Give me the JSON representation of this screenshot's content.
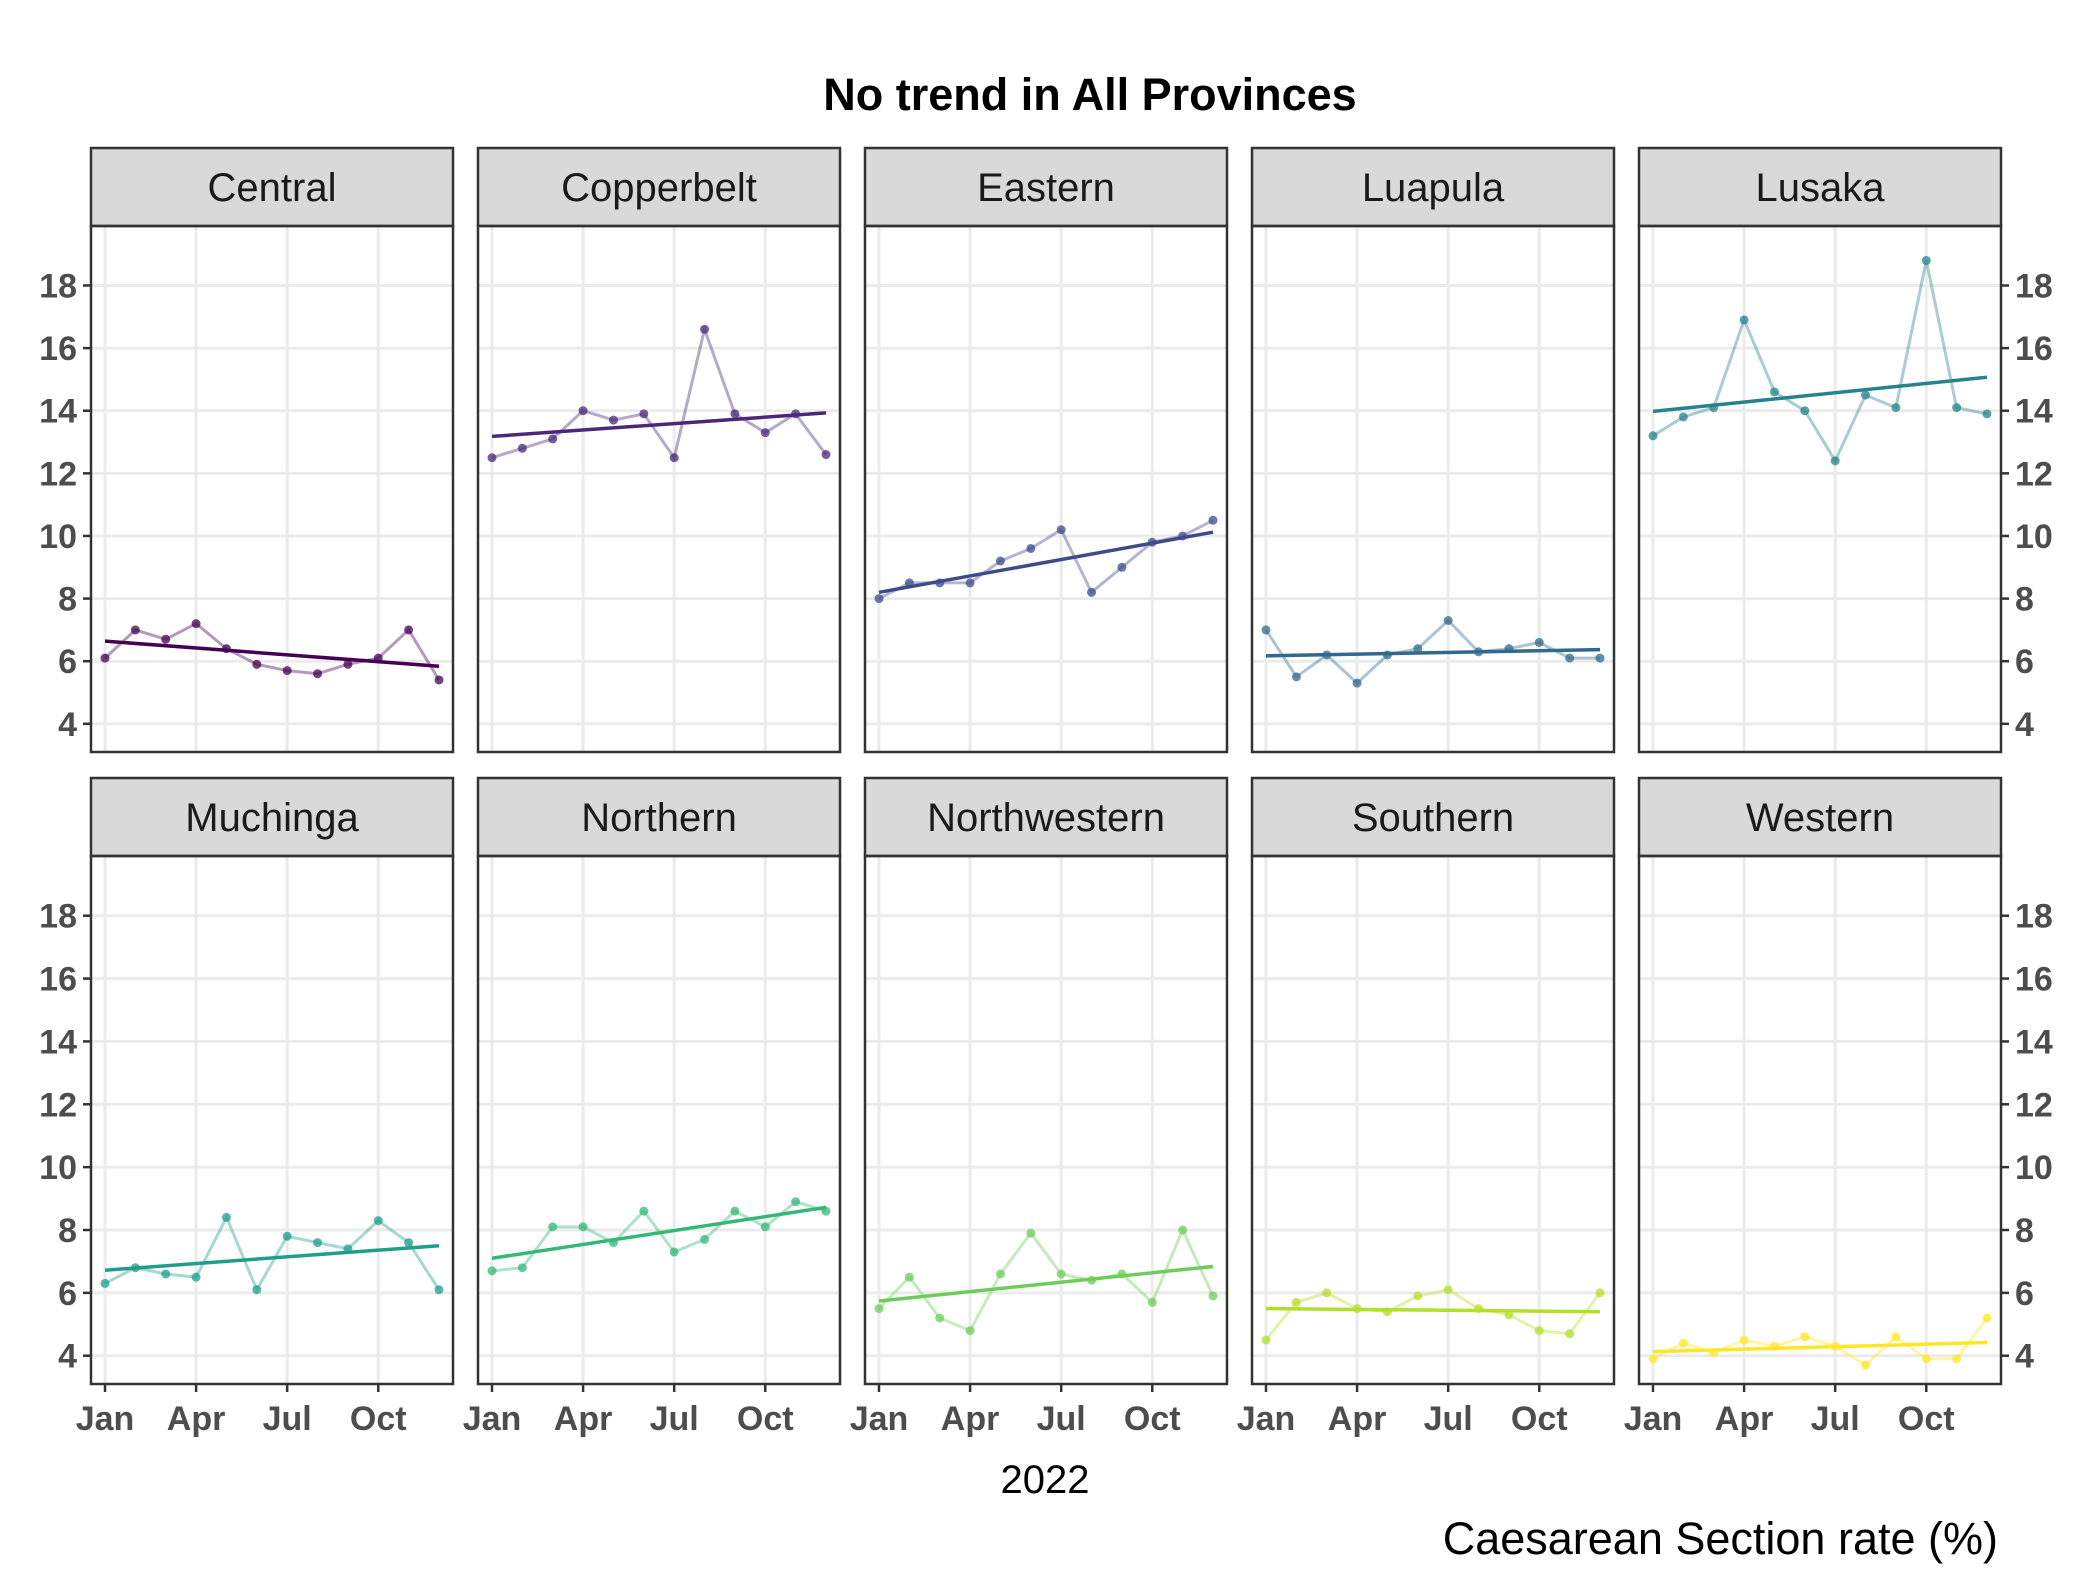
{
  "chart_data": {
    "type": "line",
    "title": "No trend in All Provinces",
    "xlabel": "2022",
    "caption": "Caesarean Section rate (%)",
    "x_tick_labels": [
      "Jan",
      "Apr",
      "Jul",
      "Oct"
    ],
    "x_tick_months": [
      1,
      4,
      7,
      10
    ],
    "y_ticks": [
      4,
      6,
      8,
      10,
      12,
      14,
      16,
      18
    ],
    "ylim": [
      3.1,
      19.9
    ],
    "x": [
      "2022-01",
      "2022-02",
      "2022-03",
      "2022-04",
      "2022-05",
      "2022-06",
      "2022-07",
      "2022-08",
      "2022-09",
      "2022-10",
      "2022-11",
      "2022-12"
    ],
    "grid": true,
    "panels": [
      {
        "name": "Central",
        "color": "#440154",
        "values": [
          6.1,
          7.0,
          6.7,
          7.2,
          6.4,
          5.9,
          5.7,
          5.6,
          5.9,
          6.1,
          7.0,
          5.4
        ],
        "trend": [
          6.64,
          5.84
        ]
      },
      {
        "name": "Copperbelt",
        "color": "#482878",
        "values": [
          12.5,
          12.8,
          13.1,
          14.0,
          13.7,
          13.9,
          12.5,
          16.6,
          13.9,
          13.3,
          13.9,
          12.6
        ],
        "trend": [
          13.18,
          13.93
        ]
      },
      {
        "name": "Eastern",
        "color": "#3E4A89",
        "values": [
          8.0,
          8.5,
          8.5,
          8.5,
          9.2,
          9.6,
          10.2,
          8.2,
          9.0,
          9.8,
          10.0,
          10.5
        ],
        "trend": [
          8.2,
          10.12
        ]
      },
      {
        "name": "Luapula",
        "color": "#31688E",
        "values": [
          7.0,
          5.5,
          6.2,
          5.3,
          6.2,
          6.4,
          7.3,
          6.3,
          6.4,
          6.6,
          6.1,
          6.1
        ],
        "trend": [
          6.17,
          6.37
        ]
      },
      {
        "name": "Lusaka",
        "color": "#26828E",
        "values": [
          13.2,
          13.8,
          14.1,
          16.9,
          14.6,
          14.0,
          12.4,
          14.5,
          14.1,
          18.8,
          14.1,
          13.9
        ],
        "trend": [
          13.98,
          15.07
        ]
      },
      {
        "name": "Muchinga",
        "color": "#1F9E89",
        "values": [
          6.3,
          6.8,
          6.6,
          6.5,
          8.4,
          6.1,
          7.8,
          7.6,
          7.4,
          8.3,
          7.6,
          6.1
        ],
        "trend": [
          6.72,
          7.5
        ]
      },
      {
        "name": "Northern",
        "color": "#35B779",
        "values": [
          6.7,
          6.8,
          8.1,
          8.1,
          7.6,
          8.6,
          7.3,
          7.7,
          8.6,
          8.1,
          8.9,
          8.6
        ],
        "trend": [
          7.1,
          8.72
        ]
      },
      {
        "name": "Northwestern",
        "color": "#6DCD59",
        "values": [
          5.5,
          6.5,
          5.2,
          4.8,
          6.6,
          7.9,
          6.6,
          6.4,
          6.6,
          5.7,
          8.0,
          5.9
        ],
        "trend": [
          5.74,
          6.84
        ]
      },
      {
        "name": "Southern",
        "color": "#B4DE2C",
        "values": [
          4.5,
          5.7,
          6.0,
          5.5,
          5.4,
          5.9,
          6.1,
          5.5,
          5.3,
          4.8,
          4.7,
          6.0
        ],
        "trend": [
          5.5,
          5.4
        ]
      },
      {
        "name": "Western",
        "color": "#FDE725",
        "values": [
          3.9,
          4.4,
          4.1,
          4.5,
          4.3,
          4.6,
          4.3,
          3.7,
          4.6,
          3.9,
          3.9,
          5.2
        ],
        "trend": [
          4.13,
          4.42
        ]
      }
    ]
  }
}
